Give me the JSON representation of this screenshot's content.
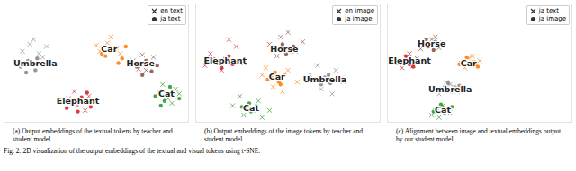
{
  "chart_data": [
    {
      "type": "scatter",
      "tick_labels": false,
      "legend": "top-right",
      "xlim": [
        0,
        100
      ],
      "ylim": [
        0,
        100
      ],
      "caption": "(a) Output embeddings of the textual tokens by teacher and student model.",
      "classes": [
        {
          "name": "Umbrella",
          "color": "#8c8c8c",
          "label_x": 17,
          "label_y": 50
        },
        {
          "name": "Car",
          "color": "#ff7f0e",
          "label_x": 57,
          "label_y": 62
        },
        {
          "name": "Horse",
          "color": "#8c564b",
          "label_x": 74,
          "label_y": 50
        },
        {
          "name": "Elephant",
          "color": "#d62728",
          "label_x": 40,
          "label_y": 18
        },
        {
          "name": "Cat",
          "color": "#2ca02c",
          "label_x": 88,
          "label_y": 24
        }
      ],
      "series": [
        {
          "name": "en text",
          "marker": "x",
          "points": [
            {
              "class": "Umbrella",
              "x": [
                10,
                14,
                19,
                23,
                16,
                21
              ],
              "y": [
                60,
                66,
                58,
                64,
                70,
                55
              ]
            },
            {
              "class": "Car",
              "x": [
                52,
                56,
                61,
                58,
                63,
                50
              ],
              "y": [
                60,
                67,
                63,
                72,
                58,
                65
              ]
            },
            {
              "class": "Horse",
              "x": [
                70,
                75,
                79,
                73,
                81,
                77
              ],
              "y": [
                52,
                57,
                50,
                45,
                55,
                44
              ]
            },
            {
              "class": "Elephant",
              "x": [
                35,
                40,
                46,
                38,
                44,
                49
              ],
              "y": [
                20,
                14,
                22,
                26,
                10,
                17
              ]
            },
            {
              "class": "Cat",
              "x": [
                84,
                89,
                93,
                86,
                91,
                95
              ],
              "y": [
                26,
                20,
                28,
                32,
                16,
                24
              ]
            }
          ]
        },
        {
          "name": "ja text",
          "marker": "o",
          "points": [
            {
              "class": "Umbrella",
              "x": [
                9,
                13,
                17,
                21,
                12,
                18
              ],
              "y": [
                47,
                52,
                44,
                50,
                42,
                54
              ]
            },
            {
              "class": "Car",
              "x": [
                55,
                60,
                64,
                53,
                66,
                62
              ],
              "y": [
                56,
                61,
                54,
                58,
                64,
                50
              ]
            },
            {
              "class": "Horse",
              "x": [
                72,
                77,
                80,
                69,
                83,
                75
              ],
              "y": [
                47,
                52,
                43,
                49,
                48,
                40
              ]
            },
            {
              "class": "Elephant",
              "x": [
                37,
                42,
                47,
                34,
                45,
                40
              ],
              "y": [
                16,
                21,
                13,
                12,
                25,
                9
              ]
            },
            {
              "class": "Cat",
              "x": [
                82,
                87,
                92,
                90,
                95,
                85
              ],
              "y": [
                22,
                18,
                24,
                30,
                20,
                14
              ]
            }
          ]
        }
      ]
    },
    {
      "type": "scatter",
      "tick_labels": false,
      "legend": "top-right",
      "xlim": [
        0,
        100
      ],
      "ylim": [
        0,
        100
      ],
      "caption": "(b) Output embeddings of the image tokens by teacher and student model.",
      "classes": [
        {
          "name": "Elephant",
          "color": "#d62728",
          "label_x": 16,
          "label_y": 52
        },
        {
          "name": "Horse",
          "color": "#8c564b",
          "label_x": 48,
          "label_y": 62
        },
        {
          "name": "Car",
          "color": "#ff7f0e",
          "label_x": 44,
          "label_y": 38
        },
        {
          "name": "Umbrella",
          "color": "#8c8c8c",
          "label_x": 70,
          "label_y": 36
        },
        {
          "name": "Cat",
          "color": "#2ca02c",
          "label_x": 30,
          "label_y": 12
        }
      ],
      "series": [
        {
          "name": "en image",
          "marker": "x",
          "points": [
            {
              "class": "Elephant",
              "x": [
                8,
                14,
                22,
                26,
                5,
                18
              ],
              "y": [
                58,
                44,
                64,
                50,
                48,
                70
              ]
            },
            {
              "class": "Horse",
              "x": [
                40,
                46,
                54,
                58,
                50,
                44
              ],
              "y": [
                66,
                72,
                60,
                68,
                76,
                56
              ]
            },
            {
              "class": "Car",
              "x": [
                36,
                42,
                50,
                55,
                38,
                47
              ],
              "y": [
                40,
                30,
                44,
                34,
                46,
                26
              ]
            },
            {
              "class": "Umbrella",
              "x": [
                62,
                68,
                76,
                80,
                66,
                74
              ],
              "y": [
                40,
                28,
                44,
                34,
                48,
                24
              ]
            },
            {
              "class": "Cat",
              "x": [
                20,
                26,
                34,
                40,
                24,
                36
              ],
              "y": [
                14,
                6,
                18,
                10,
                22,
                4
              ]
            }
          ]
        },
        {
          "name": "ja image",
          "marker": "o",
          "points": [
            {
              "class": "Elephant",
              "x": [
                12,
                16,
                20,
                14,
                18,
                10
              ],
              "y": [
                50,
                54,
                49,
                46,
                56,
                53
              ]
            },
            {
              "class": "Horse",
              "x": [
                45,
                49,
                53,
                47,
                51,
                43
              ],
              "y": [
                62,
                58,
                64,
                66,
                60,
                61
              ]
            },
            {
              "class": "Car",
              "x": [
                41,
                45,
                48,
                43,
                39,
                46
              ],
              "y": [
                38,
                34,
                40,
                42,
                36,
                32
              ]
            },
            {
              "class": "Umbrella",
              "x": [
                66,
                70,
                73,
                68,
                72,
                64
              ],
              "y": [
                36,
                38,
                33,
                32,
                40,
                35
              ]
            },
            {
              "class": "Cat",
              "x": [
                27,
                30,
                33,
                29,
                32,
                25
              ],
              "y": [
                12,
                9,
                14,
                16,
                10,
                13
              ]
            }
          ]
        }
      ]
    },
    {
      "type": "scatter",
      "tick_labels": false,
      "legend": "top-right",
      "xlim": [
        0,
        100
      ],
      "ylim": [
        0,
        100
      ],
      "caption": "(c) Alignment between image and textual embeddings output by our student model.",
      "classes": [
        {
          "name": "Elephant",
          "color": "#d62728",
          "label_x": 12,
          "label_y": 52
        },
        {
          "name": "Horse",
          "color": "#8c564b",
          "label_x": 24,
          "label_y": 66
        },
        {
          "name": "Car",
          "color": "#ff7f0e",
          "label_x": 44,
          "label_y": 50
        },
        {
          "name": "Umbrella",
          "color": "#8c8c8c",
          "label_x": 34,
          "label_y": 28
        },
        {
          "name": "Cat",
          "color": "#2ca02c",
          "label_x": 30,
          "label_y": 10
        }
      ],
      "series": [
        {
          "name": "ja text",
          "marker": "x",
          "points": [
            {
              "class": "Elephant",
              "x": [
                6,
                10,
                14,
                8,
                16,
                12
              ],
              "y": [
                50,
                55,
                48,
                46,
                54,
                58
              ]
            },
            {
              "class": "Horse",
              "x": [
                20,
                24,
                28,
                18,
                26,
                30
              ],
              "y": [
                66,
                70,
                63,
                62,
                72,
                67
              ]
            },
            {
              "class": "Car",
              "x": [
                40,
                44,
                48,
                42,
                50,
                46
              ],
              "y": [
                50,
                54,
                48,
                46,
                52,
                56
              ]
            },
            {
              "class": "Umbrella",
              "x": [
                30,
                34,
                38,
                28,
                36,
                32
              ],
              "y": [
                28,
                32,
                26,
                24,
                30,
                34
              ]
            },
            {
              "class": "Cat",
              "x": [
                26,
                30,
                34,
                24,
                32,
                28
              ],
              "y": [
                10,
                14,
                8,
                6,
                12,
                4
              ]
            }
          ]
        },
        {
          "name": "ja image",
          "marker": "o",
          "points": [
            {
              "class": "Elephant",
              "x": [
                8,
                12,
                16,
                10,
                14,
                5
              ],
              "y": [
                52,
                49,
                53,
                56,
                47,
                51
              ]
            },
            {
              "class": "Horse",
              "x": [
                22,
                26,
                21,
                25,
                29,
                19
              ],
              "y": [
                64,
                68,
                70,
                61,
                65,
                67
              ]
            },
            {
              "class": "Car",
              "x": [
                41,
                45,
                47,
                43,
                49,
                39
              ],
              "y": [
                52,
                48,
                51,
                55,
                47,
                49
              ]
            },
            {
              "class": "Umbrella",
              "x": [
                31,
                35,
                37,
                33,
                29,
                39
              ],
              "y": [
                30,
                26,
                29,
                33,
                27,
                31
              ]
            },
            {
              "class": "Cat",
              "x": [
                27,
                31,
                33,
                29,
                25,
                35
              ],
              "y": [
                12,
                8,
                11,
                15,
                9,
                13
              ]
            }
          ]
        }
      ]
    }
  ],
  "figure_caption": "Fig. 2: 2D visualization of the output embeddings of the textual and visual tokens using t-SNE."
}
